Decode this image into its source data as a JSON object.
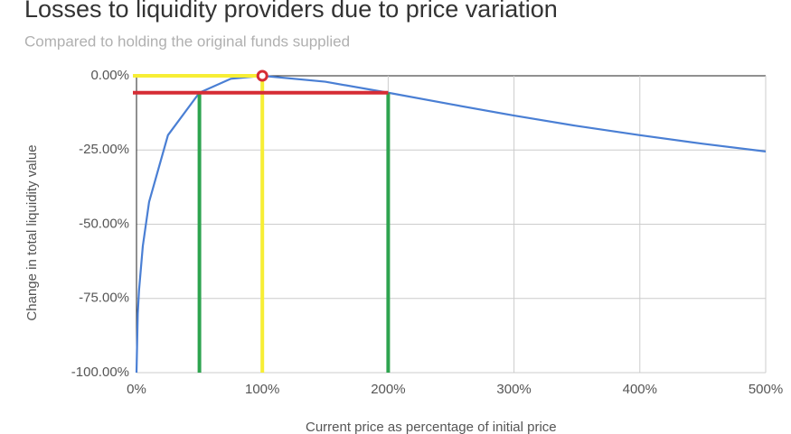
{
  "chart_data": {
    "type": "line",
    "title": "Losses to liquidity providers due to price variation",
    "subtitle": "Compared to holding the original funds supplied",
    "x_label": "Current price as percentage of initial price",
    "y_label": "Change in total liquidity value",
    "x": [
      0,
      1,
      2,
      5,
      10,
      25,
      50,
      75,
      100,
      150,
      200,
      250,
      300,
      350,
      400,
      450,
      500
    ],
    "series": [
      {
        "name": "Change in total liquidity value",
        "color": "#4a7fd4",
        "values": [
          -100,
          -80.2,
          -72.3,
          -57.4,
          -42.5,
          -20,
          -5.7,
          -1.0,
          0,
          -2.0,
          -5.7,
          -9.6,
          -13.4,
          -16.9,
          -20,
          -22.9,
          -25.5
        ]
      }
    ],
    "xlim": [
      0,
      500
    ],
    "xticks": [
      {
        "value": 0,
        "label": "0%"
      },
      {
        "value": 100,
        "label": "100%"
      },
      {
        "value": 200,
        "label": "200%"
      },
      {
        "value": 300,
        "label": "300%"
      },
      {
        "value": 400,
        "label": "400%"
      },
      {
        "value": 500,
        "label": "500%"
      }
    ],
    "ylim": [
      -100,
      0
    ],
    "yticks": [
      {
        "value": 0,
        "label": "0.00%"
      },
      {
        "value": -25,
        "label": "-25.00%"
      },
      {
        "value": -50,
        "label": "-50.00%"
      },
      {
        "value": -75,
        "label": "-75.00%"
      },
      {
        "value": -100,
        "label": "-100.00%"
      }
    ],
    "grid": true,
    "reference_lines": [
      {
        "axis": "x",
        "value": 100,
        "from": -100,
        "to": 0,
        "color": "#f7ee35"
      },
      {
        "axis": "y",
        "value": 0,
        "from": 0,
        "to": 100,
        "color": "#f7ee35"
      },
      {
        "axis": "x",
        "value": 50,
        "from": -100,
        "to": -5.7,
        "color": "#2ea44f"
      },
      {
        "axis": "x",
        "value": 200,
        "from": -100,
        "to": -5.7,
        "color": "#2ea44f"
      },
      {
        "axis": "y",
        "value": -5.7,
        "from": 0,
        "to": 200,
        "color": "#d62d35"
      }
    ],
    "markers": [
      {
        "x": 100,
        "y": 0,
        "color": "#d62d35"
      }
    ]
  }
}
